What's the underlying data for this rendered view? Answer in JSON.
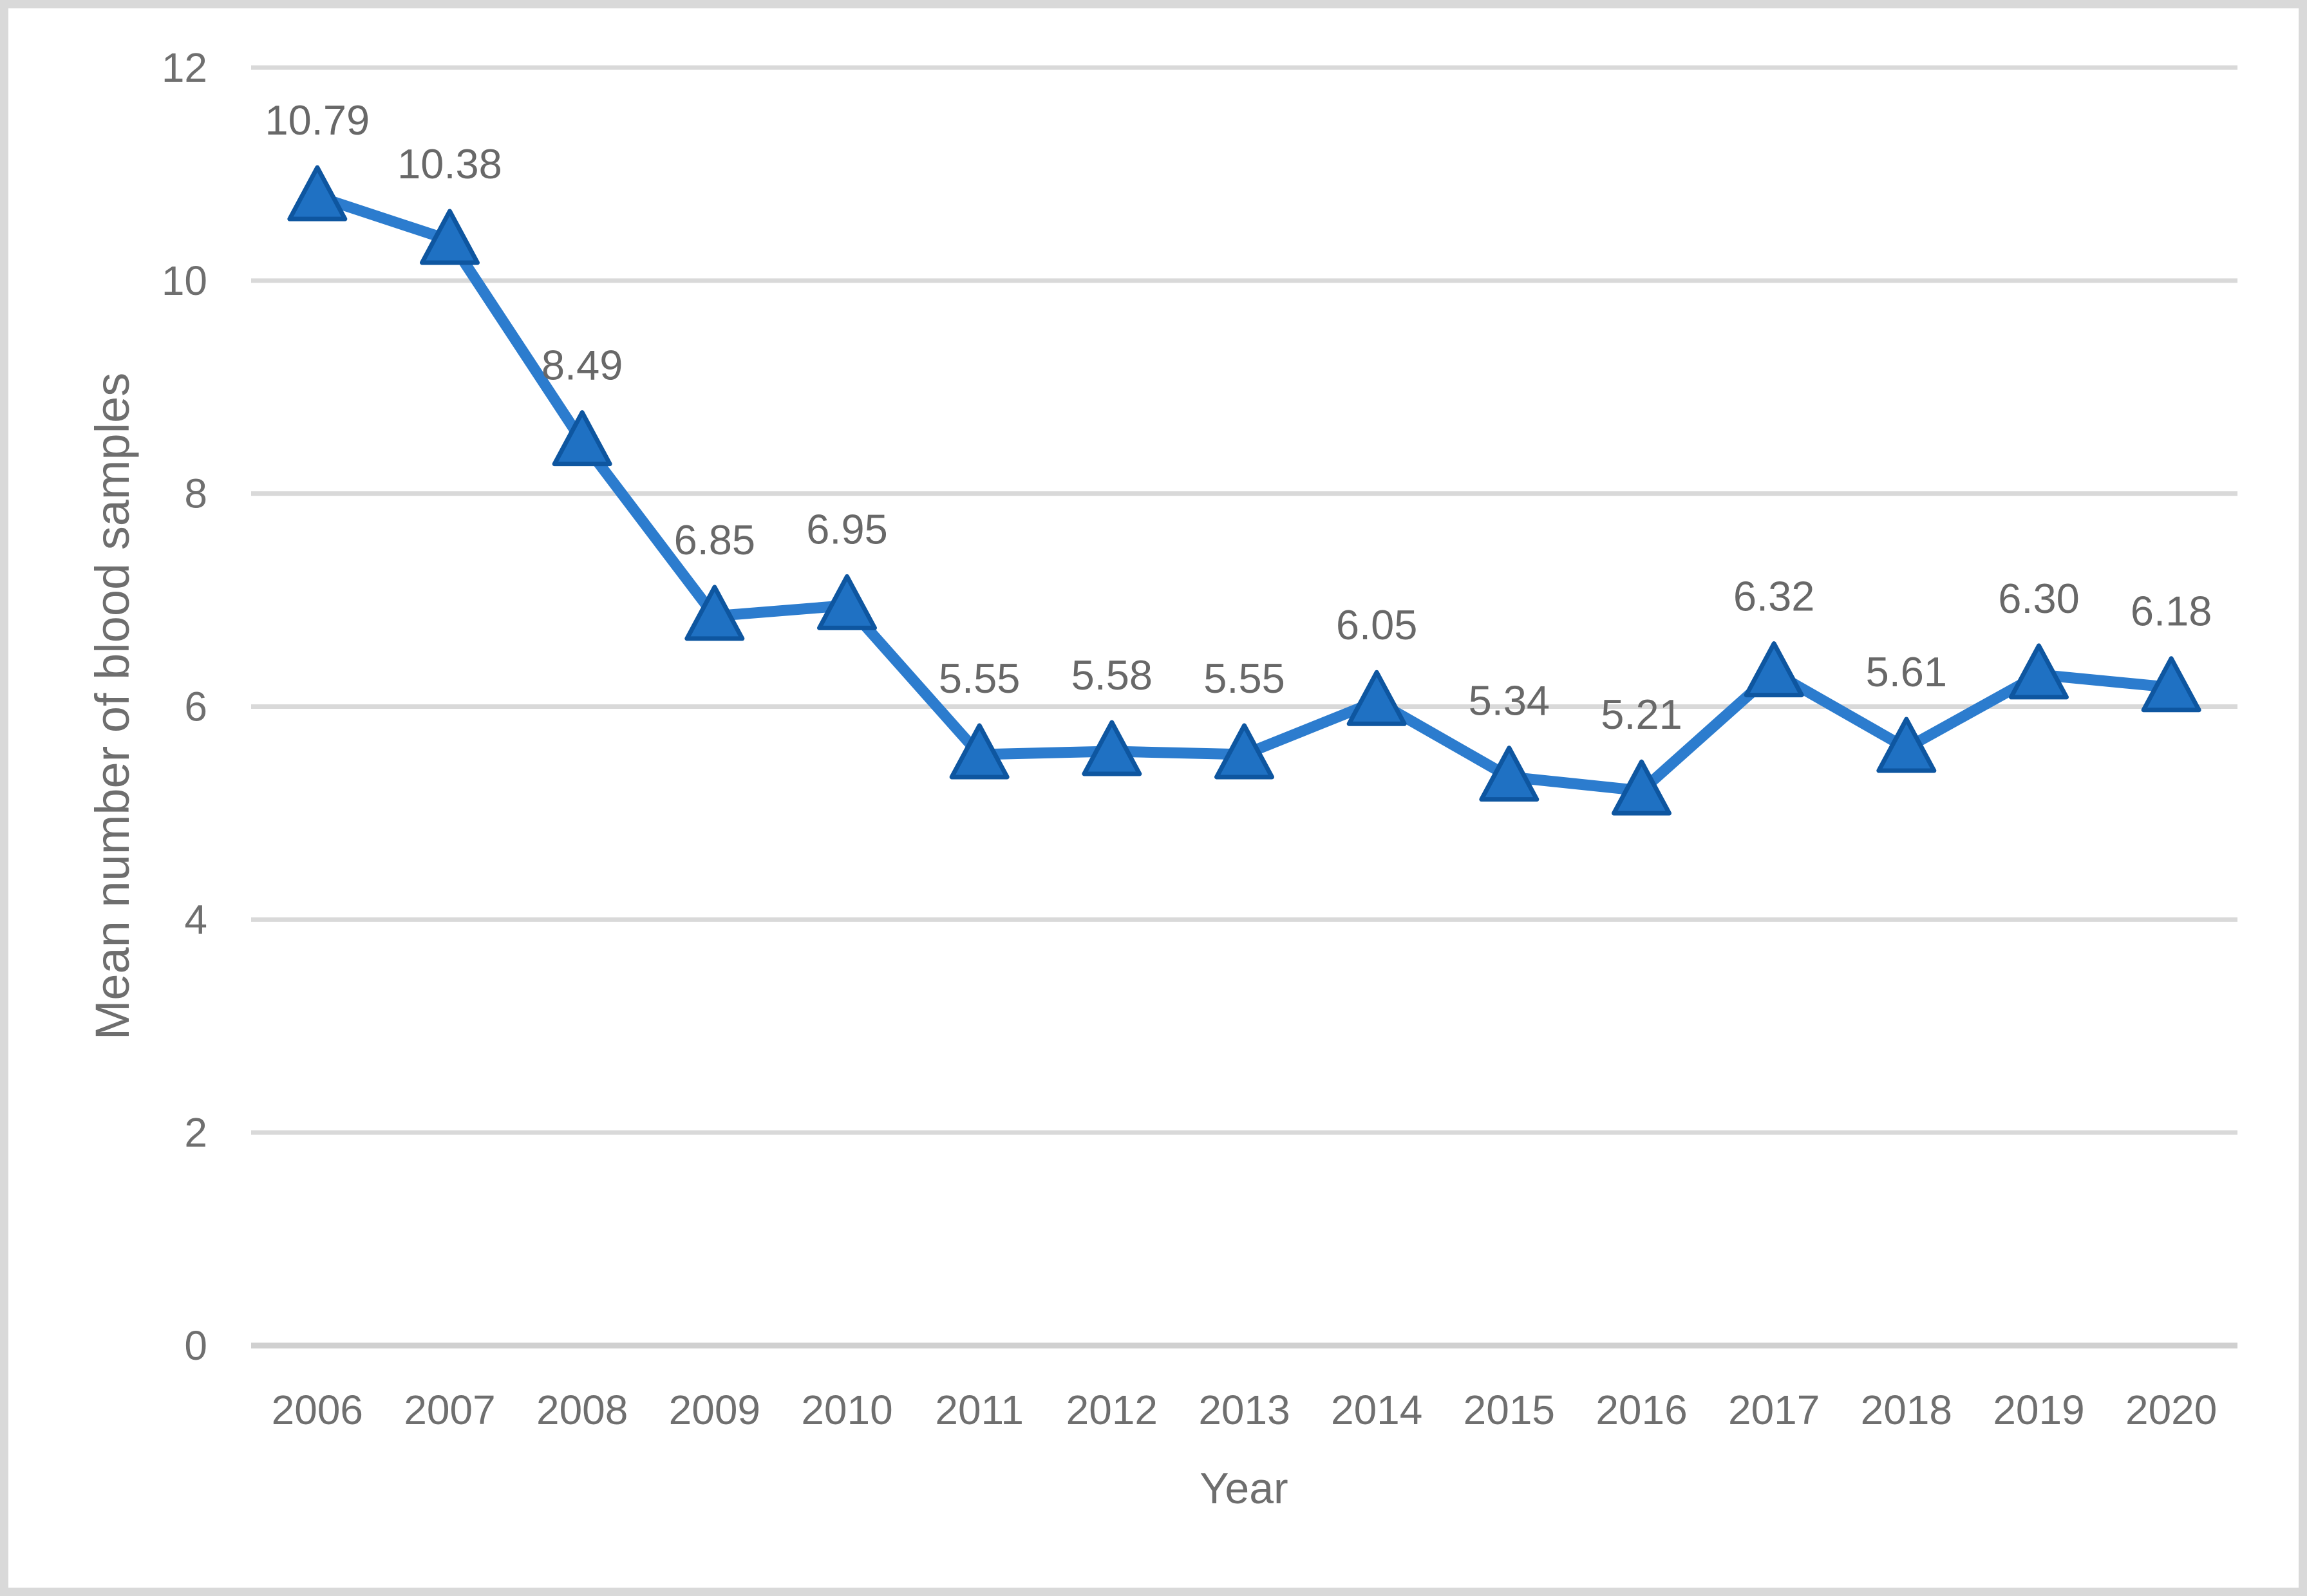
{
  "chart_data": {
    "type": "line",
    "title": "",
    "categories": [
      "2006",
      "2007",
      "2008",
      "2009",
      "2010",
      "2011",
      "2012",
      "2013",
      "2014",
      "2015",
      "2016",
      "2017",
      "2018",
      "2019",
      "2020"
    ],
    "series": [
      {
        "name": "Mean number of blood samples",
        "values": [
          10.79,
          10.38,
          8.49,
          6.85,
          6.95,
          5.55,
          5.58,
          5.55,
          6.05,
          5.34,
          5.21,
          6.32,
          5.61,
          6.3,
          6.18
        ],
        "data_labels": [
          "10.79",
          "10.38",
          "8.49",
          "6.85",
          "6.95",
          "5.55",
          "5.58",
          "5.55",
          "6.05",
          "5.34",
          "5.21",
          "6.32",
          "5.61",
          "6.30",
          "6.18"
        ]
      }
    ],
    "xlabel": "Year",
    "ylabel": "Mean number of blood samples",
    "ylim": [
      0,
      12
    ],
    "yticks": [
      "0",
      "2",
      "4",
      "6",
      "8",
      "10",
      "12"
    ],
    "grid": "horizontal",
    "legend": "none",
    "marker": "triangle-up",
    "data_label_position": "above",
    "colors": {
      "line": "#2C7CCE",
      "marker_fill": "#1F71C3",
      "marker_border": "#0E56A0",
      "gridline": "#D9D9D9",
      "axis_line": "#D0D0D0",
      "tick_text": "#6F6F6F",
      "data_label_text": "#686868",
      "axis_title_text": "#6E6E6E",
      "frame_border": "#D9D9D9",
      "background": "#FFFFFF"
    }
  }
}
